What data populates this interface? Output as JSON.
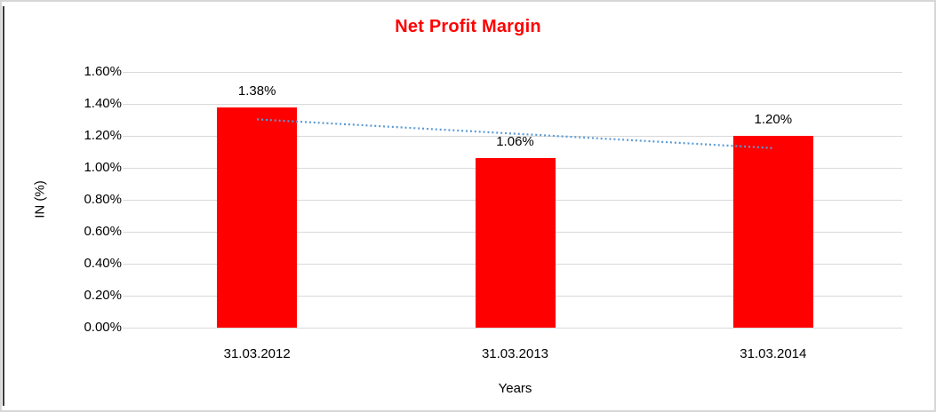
{
  "chart_data": {
    "type": "bar",
    "title": "Net Profit Margin",
    "title_color": "#FF0000",
    "categories": [
      "31.03.2012",
      "31.03.2013",
      "31.03.2014"
    ],
    "values": [
      1.38,
      1.06,
      1.2
    ],
    "data_labels": [
      "1.38%",
      "1.06%",
      "1.20%"
    ],
    "xlabel": "Years",
    "ylabel": "IN (%)",
    "ylim": [
      0,
      1.6
    ],
    "ytick_step": 0.2,
    "ytick_labels": [
      "0.00%",
      "0.20%",
      "0.40%",
      "0.60%",
      "0.80%",
      "1.00%",
      "1.20%",
      "1.40%",
      "1.60%"
    ],
    "bar_color": "#FF0000",
    "grid": "horizontal",
    "gridline_color": "#D9D9D9",
    "legend": "none",
    "trendline": {
      "type": "linear",
      "style": "dotted",
      "color": "#5B9BD5"
    }
  }
}
